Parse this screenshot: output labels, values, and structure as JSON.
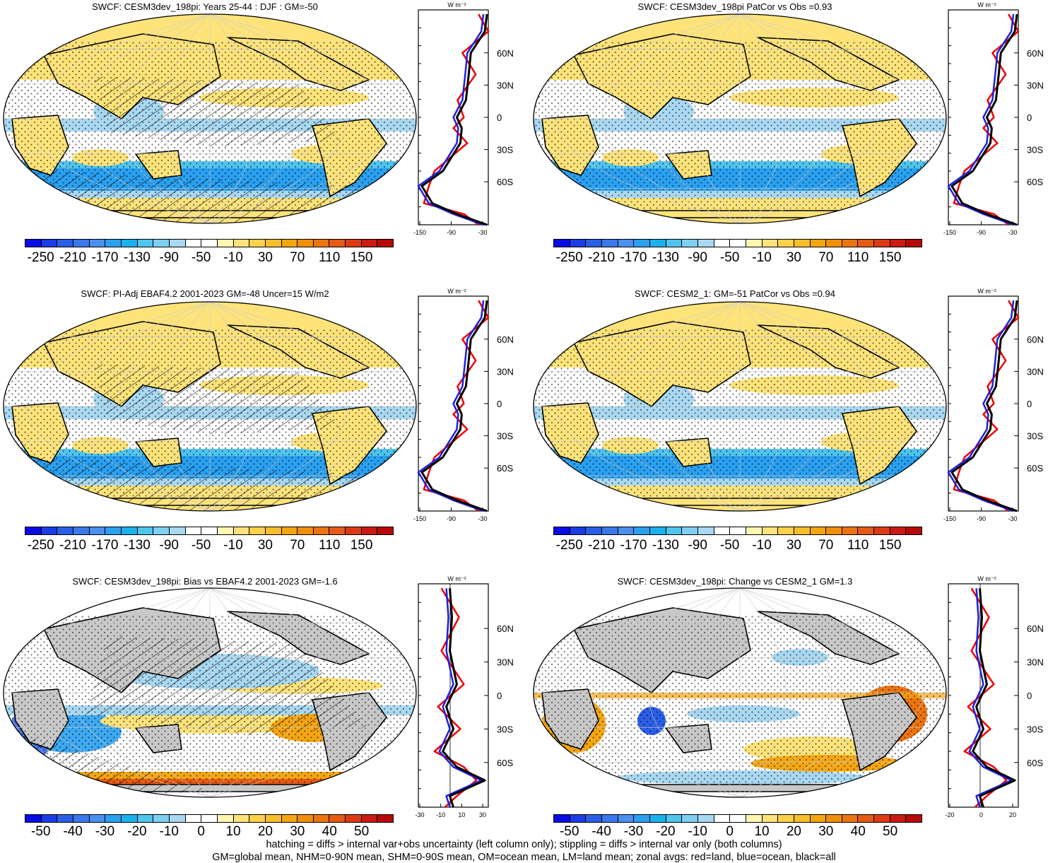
{
  "panels": [
    {
      "title": "SWCF: CESM3dev_198pi: Years 25-44 : DJF : GM=-50"
    },
    {
      "title": "SWCF: CESM3dev_198pi PatCor vs Obs =0.93"
    },
    {
      "title": "SWCF: PI-Adj EBAF4.2 2001-2023 GM=-48 Uncer=15 W/m2"
    },
    {
      "title": "SWCF: CESM2_1: GM=-51 PatCor vs Obs =0.94"
    },
    {
      "title": "SWCF: CESM3dev_198pi: Bias vs EBAF4.2 2001-2023 GM=-1.6"
    },
    {
      "title": "SWCF: CESM3dev_198pi: Change vs CESM2_1 GM=1.3"
    }
  ],
  "zonal": {
    "unit": "W m⁻²",
    "lat_labels": [
      "60N",
      "30N",
      "0",
      "30S",
      "60S"
    ],
    "abs_ticks": [
      "-150",
      "-90",
      "-30"
    ],
    "diff_ticks_left": [
      "-30",
      "-10",
      "10",
      "30"
    ],
    "diff_ticks_right": [
      "-20",
      "0",
      "20"
    ],
    "legend_colors": {
      "land": "#ee0000",
      "ocean": "#1f1fdd",
      "all": "#000000"
    }
  },
  "colorbars": {
    "absolute_labels": [
      "-250",
      "-210",
      "-170",
      "-130",
      "-90",
      "-50",
      "-10",
      "30",
      "70",
      "110",
      "150"
    ],
    "difference_labels": [
      "-50",
      "-40",
      "-30",
      "-20",
      "-10",
      "0",
      "10",
      "20",
      "30",
      "40",
      "50"
    ],
    "colors": [
      "#0a0ae6",
      "#1a3de6",
      "#2b5ee8",
      "#3a78ec",
      "#4b8ff0",
      "#2aa0f0",
      "#19b2ec",
      "#4fc4ee",
      "#7ed0f0",
      "#a8d8f2",
      "#ffffff",
      "#ffffff",
      "#fff6b0",
      "#fde37a",
      "#fcd24a",
      "#f8bf2a",
      "#f5a60f",
      "#f28e0a",
      "#ec7410",
      "#e55a14",
      "#dd3a14",
      "#cc1a12",
      "#b60a0a"
    ]
  },
  "map_colors": {
    "land_gray": "#c8c8c8",
    "yellow": "#fde37a",
    "light_blue": "#a8d8f2",
    "mid_blue": "#4fc4ee",
    "blue": "#2aa0f0",
    "orange": "#f5a60f"
  },
  "footer": {
    "line1": "hatching = diffs > internal var+obs uncertainty (left column only); stippling = diffs > internal var only (both columns)",
    "line2": "GM=global mean, NHM=0-90N mean, SHM=0-90S mean, OM=ocean mean, LM=land mean; zonal avgs: red=land, blue=ocean, black=all"
  }
}
